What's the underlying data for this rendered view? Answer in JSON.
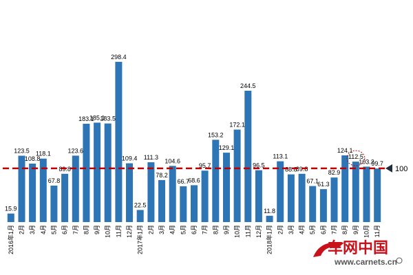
{
  "chart_data": {
    "type": "bar",
    "title": "",
    "xlabel": "",
    "ylabel": "",
    "ylim": [
      0,
      320
    ],
    "grid": false,
    "legend": "none",
    "bar_color": "#2e75b6",
    "reference_line": {
      "value": 100,
      "label": "100",
      "color": "#c00000",
      "style": "dashed"
    },
    "highlighted_category_index": 32,
    "categories": [
      "2016年1月",
      "2月",
      "3月",
      "4月",
      "5月",
      "6月",
      "7月",
      "8月",
      "9月",
      "10月",
      "11月",
      "12月",
      "2017年1月",
      "2月",
      "3月",
      "4月",
      "5月",
      "6月",
      "7月",
      "8月",
      "9月",
      "10月",
      "11月",
      "12月",
      "2018年1月",
      "2月",
      "3月",
      "4月",
      "5月",
      "6月",
      "7月",
      "8月",
      "9月",
      "10月",
      "11月"
    ],
    "values": [
      15.9,
      123.5,
      108.8,
      118.1,
      67.8,
      89.8,
      123.6,
      183.1,
      185.1,
      183.5,
      298.4,
      109.4,
      22.5,
      111.3,
      78.2,
      104.6,
      66.7,
      68.6,
      95.7,
      153.2,
      129.1,
      172.1,
      244.5,
      96.5,
      11.8,
      113.1,
      88.8,
      89.8,
      67.1,
      61.3,
      82.9,
      124.1,
      112.5,
      103.2,
      99.7
    ]
  },
  "watermark": {
    "brand": "车网中国",
    "url": "www.carnets.cn"
  }
}
